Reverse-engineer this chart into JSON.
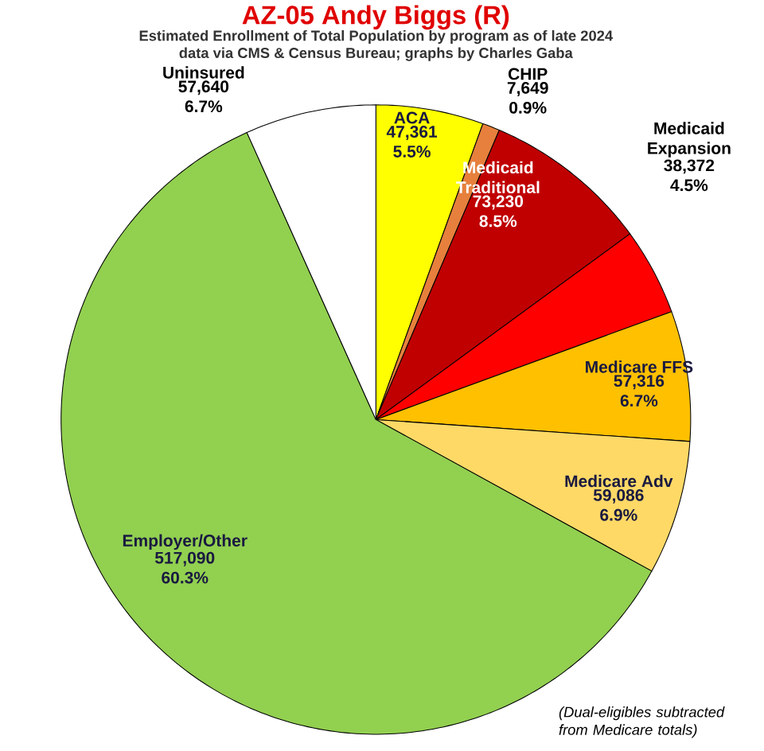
{
  "chart_data": {
    "type": "pie",
    "title": "AZ-05 Andy Biggs (R)",
    "subtitle": "Estimated Enrollment of Total Population by program as of late 2024",
    "categories": [
      "ACA",
      "CHIP",
      "Medicaid Traditional",
      "Medicaid Expansion",
      "Medicare FFS",
      "Medicare Adv",
      "Employer/Other",
      "Uninsured"
    ],
    "values": [
      47361,
      7649,
      73230,
      38372,
      57316,
      59086,
      517090,
      57640
    ],
    "value_labels": [
      "47,361 5.5%",
      "7,649 0.9%",
      "73,230 8.5%",
      "38,372 4.5%",
      "57,316 6.7%",
      "59,086 6.9%",
      "517,090 60.3%",
      "57,640 6.7%"
    ],
    "colors": [
      "#ffff00",
      "#e6803c",
      "#c00000",
      "#ff0000",
      "#ffc000",
      "#ffd966",
      "#92d050",
      "#ffffff"
    ],
    "legend": false,
    "annotations": [
      "data via CMS & Census Bureau; graphs by Charles Gaba",
      "(Dual-eligibles subtracted from Medicare totals)"
    ]
  }
}
